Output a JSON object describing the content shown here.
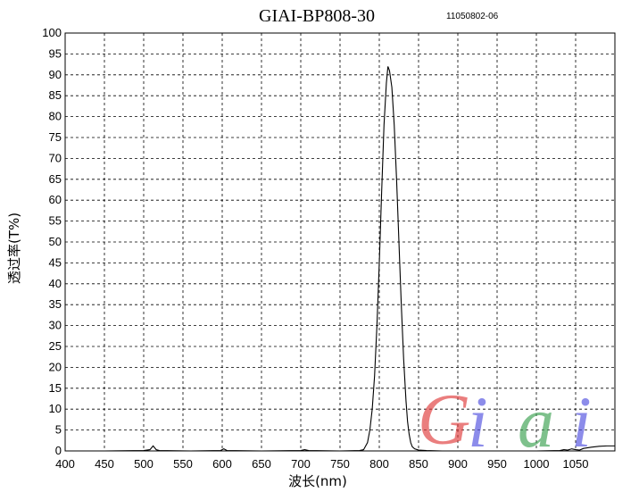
{
  "header": {
    "title": "GIAI-BP808-30",
    "code": "11050802-06"
  },
  "watermark": {
    "letters": [
      "G",
      "i",
      "a",
      "i"
    ],
    "colors": [
      "#e03a3a",
      "#5050e0",
      "#3aa050",
      "#5050e0"
    ]
  },
  "chart_data": {
    "type": "line",
    "title": "GIAI-BP808-30",
    "xlabel": "波长(nm)",
    "ylabel": "透过率(T%)",
    "xlim": [
      400,
      1100
    ],
    "ylim": [
      0,
      100
    ],
    "grid": true,
    "x_ticks": [
      400,
      450,
      500,
      550,
      600,
      650,
      700,
      750,
      800,
      850,
      900,
      950,
      1000,
      1050
    ],
    "y_ticks": [
      0,
      5,
      10,
      15,
      20,
      25,
      30,
      35,
      40,
      45,
      50,
      55,
      60,
      65,
      70,
      75,
      80,
      85,
      90,
      95,
      100
    ],
    "series": [
      {
        "x": [
          400,
          450,
          500,
          508,
          512,
          516,
          520,
          560,
          598,
          602,
          606,
          650,
          700,
          705,
          710,
          750,
          775,
          780,
          785,
          788,
          791,
          794,
          797,
          800,
          803,
          806,
          809,
          811,
          813,
          816,
          819,
          822,
          825,
          828,
          831,
          834,
          836,
          838,
          840,
          842,
          845,
          850,
          860,
          880,
          900,
          950,
          1000,
          1030,
          1035,
          1040,
          1045,
          1050,
          1055,
          1060,
          1070,
          1080,
          1090,
          1100
        ],
        "y": [
          0,
          0,
          0.1,
          0.3,
          1.2,
          0.3,
          0.1,
          0,
          0.1,
          0.5,
          0.1,
          0,
          0.1,
          0.3,
          0.1,
          0,
          0.1,
          0.3,
          2,
          5,
          10,
          18,
          30,
          45,
          62,
          78,
          88,
          92,
          91,
          87,
          78,
          65,
          50,
          35,
          22,
          12,
          7,
          4,
          2,
          1,
          0.5,
          0.2,
          0.1,
          0,
          0,
          0,
          0,
          0.1,
          0.3,
          0.2,
          0.5,
          0.3,
          0.2,
          0.6,
          0.9,
          1.1,
          1.2,
          1.2
        ]
      }
    ]
  }
}
